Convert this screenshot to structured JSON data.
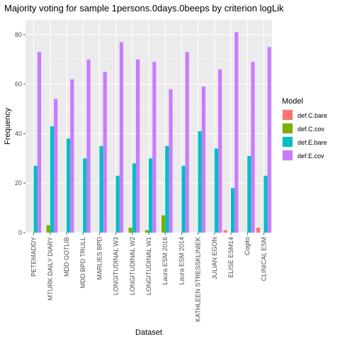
{
  "chart_data": {
    "type": "bar",
    "title": "Majority voting for sample 1persons.0days.0beeps by criterion logLik",
    "xlabel": "Dataset",
    "ylabel": "Frequency",
    "ylim": [
      0,
      86
    ],
    "yticks": [
      0,
      20,
      40,
      60,
      80
    ],
    "grid": true,
    "legend": {
      "title": "Model",
      "placement": "right"
    },
    "categories": [
      "PETEMADDY",
      "MTURK DAILY DIARY",
      "MDD GOTLIB",
      "MDD BPD TRULL",
      "MARLIES BPD",
      "LONGITUDINAL W3",
      "LONGITUDINAL W2",
      "LONGITUDINAL W1",
      "Laura ESM 2016",
      "Laura ESM 2014",
      "KATHLEEN STRESSKLINIEK",
      "JULIAN EGON",
      "ELISE ESM14",
      "Cogito",
      "CLINICAL ESM"
    ],
    "series": [
      {
        "name": "def.C.bare",
        "color": "#F8766D",
        "values": [
          0,
          0,
          0,
          0,
          0,
          0,
          0,
          0,
          0,
          0,
          0,
          0,
          1,
          0,
          2
        ]
      },
      {
        "name": "def.C.cov",
        "color": "#7CAE00",
        "values": [
          0,
          3,
          0,
          0,
          0,
          0,
          2,
          1,
          7,
          0,
          0,
          0,
          0,
          0,
          0
        ]
      },
      {
        "name": "def.E.bare",
        "color": "#00BFC4",
        "values": [
          27,
          43,
          38,
          30,
          35,
          23,
          28,
          30,
          35,
          27,
          41,
          34,
          18,
          31,
          23
        ]
      },
      {
        "name": "def.E.cov",
        "color": "#C77CFF",
        "values": [
          73,
          54,
          62,
          70,
          65,
          77,
          70,
          69,
          58,
          73,
          59,
          66,
          81,
          69,
          75
        ]
      }
    ]
  }
}
